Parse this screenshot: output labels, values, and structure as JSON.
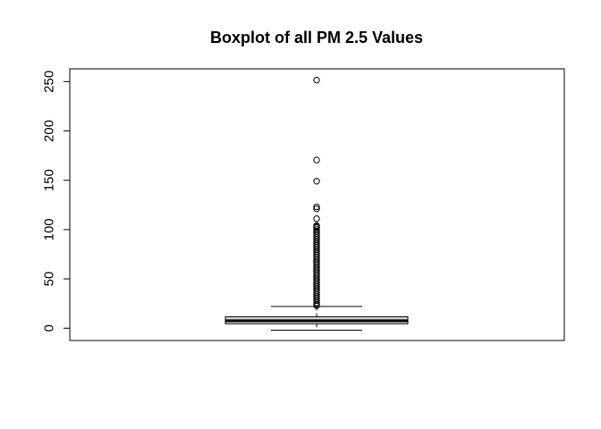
{
  "chart_data": {
    "type": "boxplot",
    "title": "Boxplot of all PM 2.5 Values",
    "xlabel": "",
    "ylabel": "",
    "ylim": [
      -12.5,
      263
    ],
    "y_ticks": [
      0,
      50,
      100,
      150,
      200,
      250
    ],
    "y_tick_labels": [
      "0",
      "50",
      "100",
      "150",
      "200",
      "250"
    ],
    "box": {
      "whisker_low": -2,
      "q1": 4.5,
      "median": 7.5,
      "q3": 11.5,
      "whisker_high": 22
    },
    "outliers": [
      251.5,
      170.5,
      149,
      123,
      121,
      111,
      104,
      103,
      102,
      100,
      98,
      96,
      94,
      92,
      90,
      88,
      86,
      84,
      82,
      80,
      78,
      76,
      74,
      72,
      70,
      68,
      66,
      64,
      62,
      60,
      58,
      56,
      54,
      52,
      50,
      48,
      46,
      44,
      42,
      40,
      38,
      36,
      34,
      32,
      30,
      28,
      26,
      24,
      23
    ],
    "grid": false,
    "legend": "none",
    "colors": {
      "box_fill": "#d3d3d3",
      "stroke": "#000000"
    }
  }
}
